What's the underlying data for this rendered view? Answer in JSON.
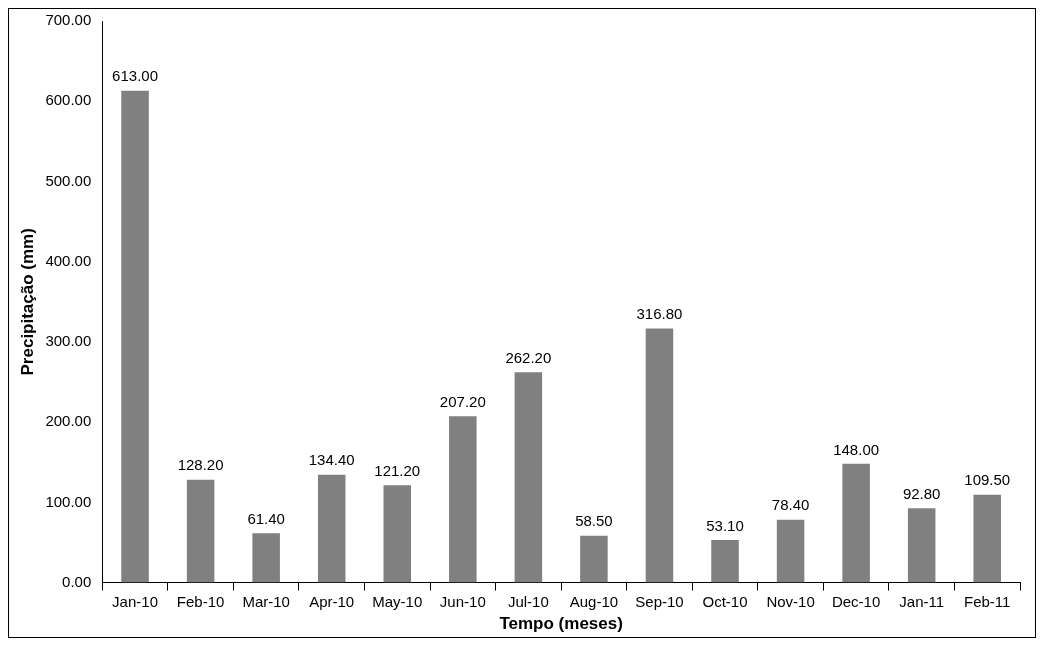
{
  "chart_data": {
    "type": "bar",
    "xlabel": "Tempo (meses)",
    "ylabel": "Precipitação (mm)",
    "categories": [
      "Jan-10",
      "Feb-10",
      "Mar-10",
      "Apr-10",
      "May-10",
      "Jun-10",
      "Jul-10",
      "Aug-10",
      "Sep-10",
      "Oct-10",
      "Nov-10",
      "Dec-10",
      "Jan-11",
      "Feb-11"
    ],
    "values": [
      613.0,
      128.2,
      61.4,
      134.4,
      121.2,
      207.2,
      262.2,
      58.5,
      316.8,
      53.1,
      78.4,
      148.0,
      92.8,
      109.5
    ],
    "value_labels": [
      "613.00",
      "128.20",
      "61.40",
      "134.40",
      "121.20",
      "207.20",
      "262.20",
      "58.50",
      "316.80",
      "53.10",
      "78.40",
      "148.00",
      "92.80",
      "109.50"
    ],
    "color": "#808080",
    "ylim": [
      0,
      700
    ],
    "yticks": [
      {
        "value": 0,
        "label": "0.00"
      },
      {
        "value": 100,
        "label": "100.00"
      },
      {
        "value": 200,
        "label": "200.00"
      },
      {
        "value": 300,
        "label": "300.00"
      },
      {
        "value": 400,
        "label": "400.00"
      },
      {
        "value": 500,
        "label": "500.00"
      },
      {
        "value": 600,
        "label": "600.00"
      },
      {
        "value": 700,
        "label": "700.00"
      }
    ],
    "grid": false,
    "legend": false
  }
}
